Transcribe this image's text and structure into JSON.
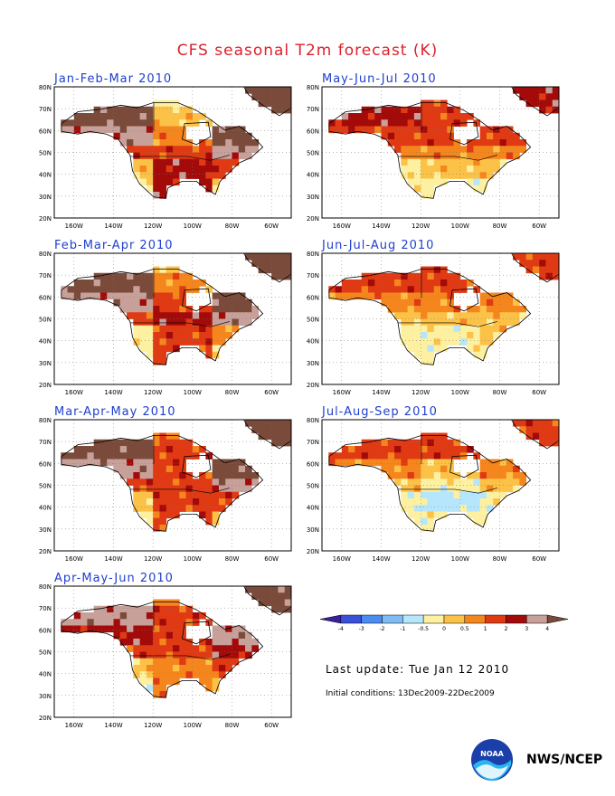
{
  "title": "CFS seasonal T2m forecast (K)",
  "panels": [
    {
      "title": "Jan-Feb-Mar 2010",
      "profile": [
        [
          7,
          1,
          8
        ],
        [
          7,
          2,
          8
        ],
        [
          6,
          3,
          7
        ],
        [
          4,
          4,
          6
        ],
        [
          2,
          5,
          4
        ],
        [
          1,
          5,
          2
        ],
        [
          1,
          4,
          1
        ]
      ]
    },
    {
      "title": "Feb-Mar-Apr 2010",
      "profile": [
        [
          7,
          2,
          8
        ],
        [
          7,
          3,
          8
        ],
        [
          6,
          4,
          7
        ],
        [
          4,
          5,
          6
        ],
        [
          1,
          4,
          3
        ],
        [
          1,
          4,
          1
        ],
        [
          2,
          4,
          1
        ]
      ]
    },
    {
      "title": "Mar-Apr-May 2010",
      "profile": [
        [
          7,
          3,
          8
        ],
        [
          7,
          4,
          8
        ],
        [
          6,
          4,
          7
        ],
        [
          4,
          4,
          6
        ],
        [
          2,
          4,
          4
        ],
        [
          1,
          4,
          2
        ],
        [
          2,
          4,
          1
        ]
      ]
    },
    {
      "title": "Apr-May-Jun 2010",
      "profile": [
        [
          6,
          3,
          7
        ],
        [
          6,
          4,
          7
        ],
        [
          5,
          4,
          6
        ],
        [
          4,
          4,
          5
        ],
        [
          2,
          3,
          4
        ],
        [
          1,
          3,
          2
        ],
        [
          2,
          4,
          2
        ]
      ]
    },
    {
      "title": "May-Jun-Jul 2010",
      "profile": [
        [
          5,
          4,
          5
        ],
        [
          5,
          4,
          5
        ],
        [
          4,
          4,
          4
        ],
        [
          3,
          3,
          3
        ],
        [
          1,
          2,
          2
        ],
        [
          1,
          1,
          1
        ],
        [
          2,
          2,
          2
        ]
      ]
    },
    {
      "title": "Jun-Jul-Aug 2010",
      "profile": [
        [
          4,
          4,
          4
        ],
        [
          4,
          4,
          4
        ],
        [
          3,
          3,
          3
        ],
        [
          2,
          2,
          2
        ],
        [
          1,
          1,
          2
        ],
        [
          1,
          1,
          1
        ],
        [
          3,
          2,
          2
        ]
      ]
    },
    {
      "title": "Jul-Aug-Sep 2010",
      "profile": [
        [
          4,
          4,
          4
        ],
        [
          4,
          4,
          4
        ],
        [
          3,
          2,
          3
        ],
        [
          2,
          1,
          2
        ],
        [
          1,
          0,
          1
        ],
        [
          1,
          1,
          1
        ],
        [
          2,
          2,
          2
        ]
      ]
    }
  ],
  "axes": {
    "lat_labels": [
      "80N",
      "70N",
      "60N",
      "50N",
      "40N",
      "30N",
      "20N"
    ],
    "lon_labels": [
      "160W",
      "140W",
      "120W",
      "100W",
      "80W",
      "60W"
    ]
  },
  "colorbar": {
    "labels": [
      "-4",
      "-3",
      "-2",
      "-1",
      "-0.5",
      "0",
      "0.5",
      "1",
      "2",
      "3",
      "4"
    ],
    "colors": [
      "#3a1fa0",
      "#3a50d8",
      "#4a8cf0",
      "#7fbcf5",
      "#b6e6fb",
      "#fdf0a0",
      "#fcc248",
      "#f5861d",
      "#e03a14",
      "#a30b0b",
      "#c8a09a",
      "#7a4a3a"
    ]
  },
  "footer": {
    "last_update": "Last update: Tue Jan 12 2010",
    "initial_conditions": "Initial conditions: 13Dec2009-22Dec2009",
    "agency": "NWS/NCEP"
  },
  "logo_text": "NOAA"
}
